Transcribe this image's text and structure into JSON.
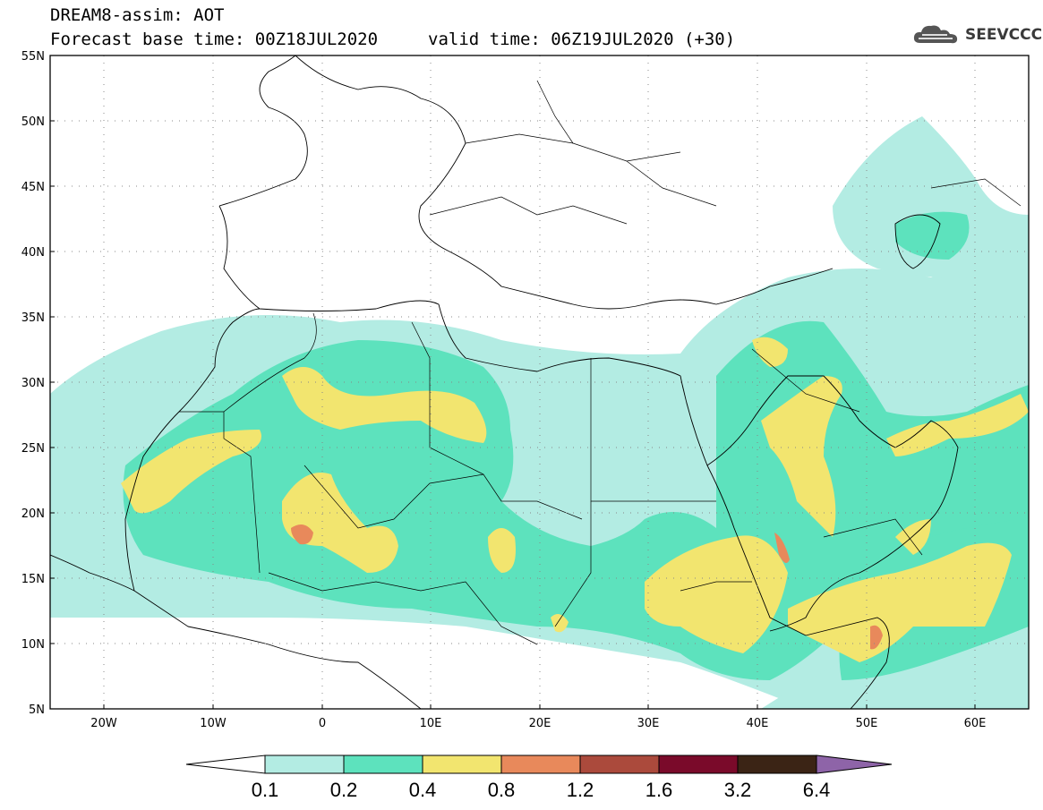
{
  "header": {
    "title": "DREAM8-assim: AOT",
    "forecast_base": "Forecast base time: 00Z18JUL2020",
    "valid_time": "valid time: 06Z19JUL2020 (+30)"
  },
  "logo": {
    "text": "SEEVCCC",
    "icon": "cloud-icon"
  },
  "map": {
    "lat_labels": [
      "55N",
      "50N",
      "45N",
      "40N",
      "35N",
      "30N",
      "25N",
      "20N",
      "15N",
      "10N",
      "5N"
    ],
    "lon_labels": [
      "20W",
      "10W",
      "0",
      "10E",
      "20E",
      "30E",
      "40E",
      "50E",
      "60E"
    ],
    "lat_range": [
      5,
      55
    ],
    "lon_range": [
      -25,
      65
    ],
    "grid": "dotted"
  },
  "colorbar": {
    "levels": [
      "0.1",
      "0.2",
      "0.4",
      "0.8",
      "1.2",
      "1.6",
      "3.2",
      "6.4"
    ],
    "colors": [
      "#ffffff",
      "#b3ece3",
      "#5de2bd",
      "#f2e56f",
      "#e8895b",
      "#ab4a3c",
      "#7a0a2a",
      "#3b2415",
      "#8e64a8"
    ]
  }
}
